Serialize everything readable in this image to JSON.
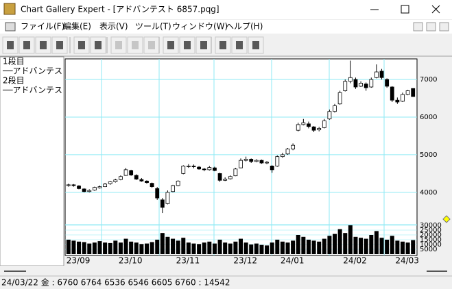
{
  "window": {
    "title": "Chart Gallery Expert - [アドバンテスト 6857.pqg]"
  },
  "menu": [
    "ファイル(F)",
    "編集(E)",
    "表示(V)",
    "ツール(T)",
    "ウィンドウ(W)",
    "ヘルプ(H)"
  ],
  "legend": [
    "1段目",
    "──アドバンテス",
    "2段目",
    "──アドバンテス"
  ],
  "chart_data": {
    "type": "candlestick",
    "categories": [
      "23/09",
      null,
      null,
      null,
      null,
      null,
      null,
      null,
      null,
      null,
      "23/10",
      null,
      null,
      null,
      null,
      null,
      null,
      null,
      null,
      null,
      null,
      "23/11",
      null,
      null,
      null,
      null,
      null,
      null,
      null,
      null,
      null,
      null,
      "23/12",
      null,
      null,
      null,
      null,
      null,
      null,
      null,
      null,
      "24/01",
      null,
      null,
      null,
      null,
      null,
      null,
      null,
      null,
      null,
      null,
      null,
      "24/02",
      null,
      null,
      null,
      null,
      null,
      null,
      null,
      null,
      null,
      "24/03",
      null,
      null,
      null
    ],
    "open": [
      4180,
      4200,
      4170,
      4090,
      4020,
      4060,
      4120,
      4150,
      4230,
      4280,
      4340,
      4450,
      4580,
      4450,
      4340,
      4300,
      4240,
      4100,
      3800,
      3700,
      4020,
      4180,
      4500,
      4690,
      4700,
      4670,
      4620,
      4600,
      4650,
      4500,
      4320,
      4360,
      4440,
      4650,
      4850,
      4880,
      4820,
      4850,
      4780,
      4700,
      4700,
      4950,
      5020,
      5150,
      5650,
      5800,
      5820,
      5740,
      5660,
      5720,
      5950,
      6150,
      6350,
      6700,
      6950,
      7000,
      6820,
      6880,
      6800,
      7050,
      7220,
      7000,
      6800,
      6450,
      6420,
      6600,
      6760
    ],
    "high": [
      4230,
      4220,
      4190,
      4110,
      4080,
      4150,
      4180,
      4250,
      4300,
      4360,
      4450,
      4650,
      4600,
      4480,
      4380,
      4320,
      4260,
      4140,
      3850,
      4050,
      4200,
      4320,
      4720,
      4750,
      4740,
      4700,
      4650,
      4700,
      4680,
      4520,
      4400,
      4450,
      4650,
      4900,
      4950,
      4900,
      4880,
      4870,
      4830,
      4720,
      4980,
      5050,
      5180,
      5300,
      5850,
      5950,
      5880,
      5760,
      5740,
      5950,
      6200,
      6350,
      6700,
      7000,
      7500,
      7050,
      6950,
      6920,
      7050,
      7400,
      7280,
      7030,
      6820,
      6520,
      6650,
      6720,
      6764
    ],
    "low": [
      4150,
      4150,
      4080,
      4000,
      4000,
      4040,
      4100,
      4140,
      4200,
      4260,
      4320,
      4440,
      4440,
      4330,
      4280,
      4230,
      4120,
      3800,
      3450,
      3680,
      4000,
      4160,
      4480,
      4650,
      4640,
      4600,
      4560,
      4580,
      4560,
      4280,
      4300,
      4340,
      4430,
      4640,
      4820,
      4780,
      4800,
      4760,
      4750,
      4520,
      4680,
      4920,
      5000,
      5120,
      5620,
      5780,
      5700,
      5600,
      5620,
      5700,
      5930,
      6120,
      6330,
      6680,
      6900,
      6750,
      6800,
      6700,
      6780,
      7030,
      7000,
      6780,
      6400,
      6350,
      6400,
      6580,
      6536
    ],
    "close": [
      4200,
      4180,
      4100,
      4020,
      4050,
      4130,
      4150,
      4220,
      4280,
      4330,
      4420,
      4600,
      4460,
      4350,
      4300,
      4260,
      4150,
      3850,
      3600,
      4000,
      4180,
      4300,
      4700,
      4700,
      4680,
      4620,
      4600,
      4660,
      4580,
      4320,
      4350,
      4420,
      4620,
      4850,
      4880,
      4820,
      4850,
      4780,
      4800,
      4600,
      4950,
      5000,
      5150,
      5250,
      5800,
      5850,
      5750,
      5650,
      5700,
      5900,
      6150,
      6300,
      6650,
      6950,
      7050,
      6800,
      6900,
      6780,
      7000,
      7200,
      7050,
      6820,
      6450,
      6400,
      6600,
      6700,
      6546
    ],
    "volume": [
      15000,
      14000,
      13000,
      12500,
      11000,
      12000,
      13500,
      12000,
      11500,
      14000,
      12000,
      16000,
      13000,
      12000,
      10500,
      11000,
      12500,
      15000,
      22000,
      18000,
      16000,
      14000,
      17000,
      12000,
      11000,
      10500,
      12000,
      13000,
      11000,
      15000,
      12000,
      11000,
      13000,
      16000,
      12000,
      10000,
      11000,
      9500,
      9000,
      12000,
      15000,
      13000,
      12000,
      14000,
      20000,
      18000,
      15000,
      14000,
      13000,
      16000,
      19000,
      21000,
      26000,
      22000,
      30000,
      18000,
      17000,
      16000,
      20000,
      24000,
      17000,
      15000,
      19000,
      14000,
      13000,
      12000,
      14542
    ],
    "ylim": [
      3160,
      7510
    ],
    "yticks": [
      4000,
      5000,
      6000,
      7000
    ],
    "volume_lim": [
      0,
      30000
    ],
    "volume_ticks": [
      30000,
      25000,
      20000,
      15000,
      10000,
      5000
    ],
    "up_color": "#ffffff",
    "down_color": "#000000",
    "volume_color": "#000000",
    "grid_color": "#8eeaf5"
  },
  "status": "24/03/22 金 : 6760 6764 6536 6546  6605 6760 : 14542"
}
